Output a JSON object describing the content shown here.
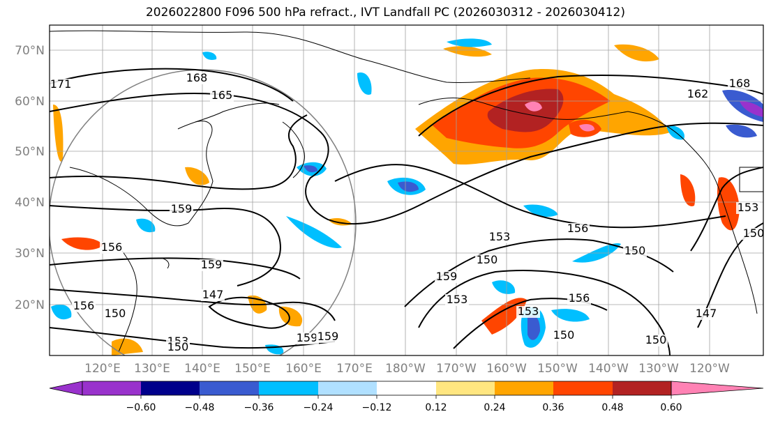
{
  "title": "2026022800 F096 500 hPa refract., IVT Landfall PC (2026030312 - 2026030412)",
  "map": {
    "lat_labels": [
      "70°N",
      "60°N",
      "50°N",
      "40°N",
      "30°N",
      "20°N"
    ],
    "lon_labels": [
      "120°E",
      "130°E",
      "140°E",
      "150°E",
      "160°E",
      "170°E",
      "180°W",
      "170°W",
      "160°W",
      "150°W",
      "140°W",
      "130°W",
      "120°W"
    ],
    "label_color": "#808080",
    "contour_labels": [
      "171",
      "168",
      "165",
      "162",
      "168",
      "159",
      "156",
      "159",
      "147",
      "156",
      "150",
      "153",
      "156",
      "153",
      "159",
      "150",
      "153",
      "150",
      "156",
      "150",
      "147",
      "150",
      "159",
      "159",
      "153",
      "150",
      "150",
      "153"
    ]
  },
  "colorbar": {
    "ticks": [
      "−0.60",
      "−0.48",
      "−0.36",
      "−0.24",
      "−0.12",
      "0.12",
      "0.24",
      "0.36",
      "0.48",
      "0.60"
    ],
    "colors": [
      "#9932cc",
      "#00008b",
      "#3a5bd0",
      "#00bfff",
      "#b0e0ff",
      "#ffffff",
      "#ffe680",
      "#ffa500",
      "#ff4500",
      "#b22222",
      "#ff82b4"
    ]
  },
  "legend_colors": {
    "pos1": "#ffe680",
    "pos2": "#ffa500",
    "pos3": "#ff4500",
    "pos4": "#b22222",
    "pos5": "#ff82b4",
    "neg1": "#b0e0ff",
    "neg2": "#00bfff",
    "neg3": "#3a5bd0",
    "neg4": "#00008b",
    "neg5": "#9932cc"
  }
}
